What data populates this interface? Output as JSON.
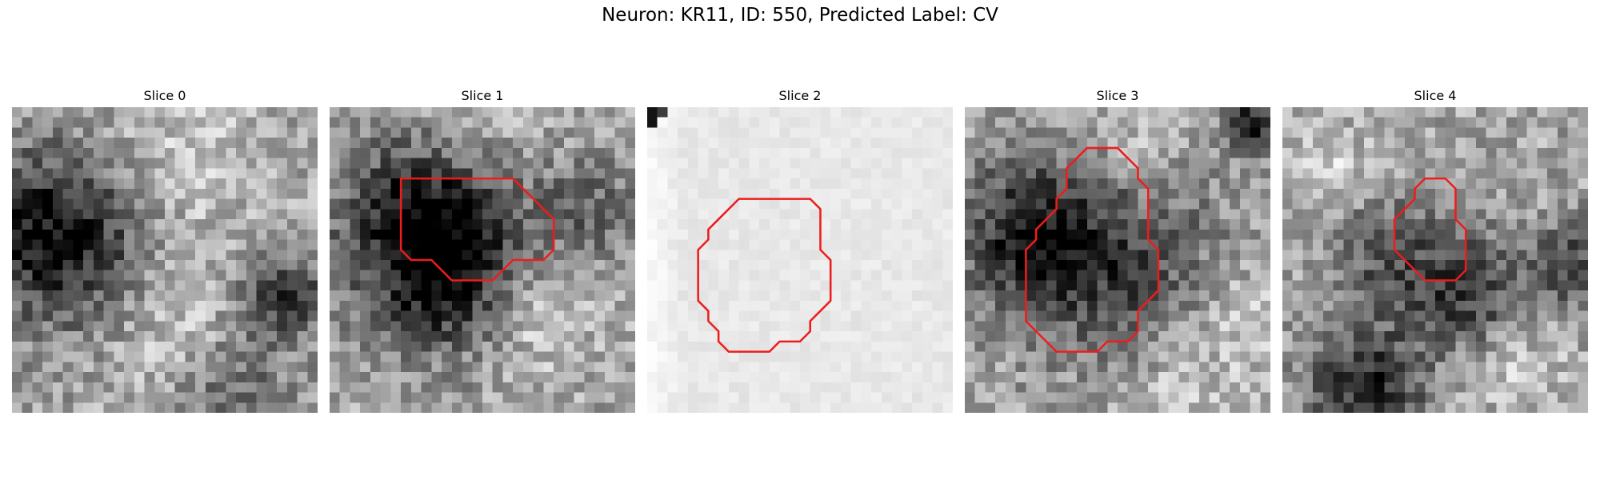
{
  "figure": {
    "title": "Neuron: KR11, ID: 550, Predicted Label: CV"
  },
  "colors": {
    "contour": "#ee1c1c",
    "colormap": "grayscale"
  },
  "panels": [
    {
      "title": "Slice 0",
      "has_contour": false,
      "tone": "mixed",
      "contour_pixels": []
    },
    {
      "title": "Slice 1",
      "has_contour": true,
      "tone": "mixed",
      "contour_pixels": [
        [
          7,
          7
        ],
        [
          18,
          7
        ],
        [
          21,
          10
        ],
        [
          22,
          11
        ],
        [
          22,
          14
        ],
        [
          21,
          15
        ],
        [
          18,
          15
        ],
        [
          17,
          16
        ],
        [
          16,
          17
        ],
        [
          12,
          17
        ],
        [
          11,
          16
        ],
        [
          10,
          15
        ],
        [
          8,
          15
        ],
        [
          7,
          14
        ],
        [
          7,
          10
        ]
      ]
    },
    {
      "title": "Slice 2",
      "has_contour": true,
      "tone": "bright",
      "contour_pixels": [
        [
          9,
          9
        ],
        [
          16,
          9
        ],
        [
          17,
          10
        ],
        [
          17,
          14
        ],
        [
          18,
          15
        ],
        [
          18,
          19
        ],
        [
          17,
          20
        ],
        [
          16,
          21
        ],
        [
          16,
          22
        ],
        [
          15,
          23
        ],
        [
          13,
          23
        ],
        [
          12,
          24
        ],
        [
          8,
          24
        ],
        [
          7,
          23
        ],
        [
          7,
          22
        ],
        [
          6,
          21
        ],
        [
          6,
          20
        ],
        [
          5,
          19
        ],
        [
          5,
          14
        ],
        [
          6,
          13
        ],
        [
          6,
          12
        ],
        [
          7,
          11
        ]
      ]
    },
    {
      "title": "Slice 3",
      "has_contour": true,
      "tone": "mixed",
      "contour_pixels": [
        [
          12,
          4
        ],
        [
          15,
          4
        ],
        [
          16,
          5
        ],
        [
          17,
          6
        ],
        [
          17,
          7
        ],
        [
          18,
          8
        ],
        [
          18,
          13
        ],
        [
          19,
          14
        ],
        [
          19,
          18
        ],
        [
          18,
          19
        ],
        [
          17,
          20
        ],
        [
          17,
          22
        ],
        [
          16,
          23
        ],
        [
          14,
          23
        ],
        [
          13,
          24
        ],
        [
          9,
          24
        ],
        [
          8,
          23
        ],
        [
          7,
          22
        ],
        [
          6,
          21
        ],
        [
          6,
          14
        ],
        [
          7,
          13
        ],
        [
          7,
          12
        ],
        [
          8,
          11
        ],
        [
          9,
          10
        ],
        [
          9,
          9
        ],
        [
          10,
          8
        ],
        [
          10,
          6
        ]
      ]
    },
    {
      "title": "Slice 4",
      "has_contour": true,
      "tone": "mixed",
      "contour_pixels": [
        [
          14,
          7
        ],
        [
          16,
          7
        ],
        [
          17,
          8
        ],
        [
          17,
          11
        ],
        [
          18,
          12
        ],
        [
          18,
          16
        ],
        [
          17,
          17
        ],
        [
          14,
          17
        ],
        [
          12,
          15
        ],
        [
          11,
          14
        ],
        [
          11,
          11
        ],
        [
          12,
          10
        ],
        [
          13,
          9
        ],
        [
          13,
          8
        ]
      ]
    }
  ]
}
